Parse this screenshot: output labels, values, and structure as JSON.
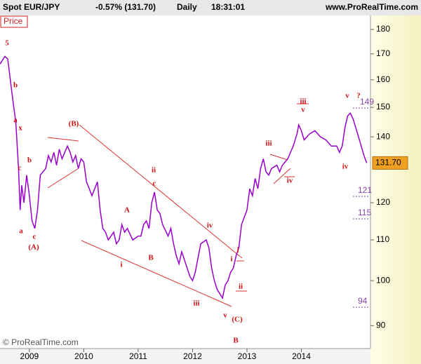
{
  "chart_data": {
    "type": "line",
    "title": "Spot EUR/JPY",
    "change": "-0.57% (131.70)",
    "period": "Daily",
    "time": "18:31:01",
    "source": "www.ProRealTime.com",
    "copyright": "© ProRealTime.com",
    "last_value": 131.7,
    "last_value_label": "131.70",
    "log_scale": true,
    "xlim": [
      2008.46,
      2015.27
    ],
    "xticks": [
      2009,
      2010,
      2011,
      2012,
      2013,
      2014
    ],
    "ylim": [
      87,
      186
    ],
    "yticks": [
      90,
      100,
      110,
      120,
      140,
      150,
      160,
      170,
      180
    ],
    "x": [
      2008.46,
      2008.55,
      2008.6,
      2008.62,
      2008.65,
      2008.7,
      2008.75,
      2008.8,
      2008.83,
      2008.86,
      2008.9,
      2008.95,
      2009.0,
      2009.05,
      2009.1,
      2009.15,
      2009.2,
      2009.3,
      2009.35,
      2009.4,
      2009.45,
      2009.5,
      2009.55,
      2009.6,
      2009.7,
      2009.75,
      2009.8,
      2009.85,
      2009.9,
      2009.95,
      2010.0,
      2010.05,
      2010.1,
      2010.15,
      2010.25,
      2010.3,
      2010.35,
      2010.4,
      2010.45,
      2010.55,
      2010.6,
      2010.65,
      2010.7,
      2010.75,
      2010.8,
      2010.9,
      2011.0,
      2011.05,
      2011.1,
      2011.15,
      2011.2,
      2011.25,
      2011.3,
      2011.35,
      2011.4,
      2011.45,
      2011.55,
      2011.6,
      2011.65,
      2011.7,
      2011.75,
      2011.8,
      2011.85,
      2011.95,
      2012.0,
      2012.05,
      2012.15,
      2012.25,
      2012.3,
      2012.35,
      2012.4,
      2012.45,
      2012.5,
      2012.55,
      2012.6,
      2012.65,
      2012.7,
      2012.75,
      2012.8,
      2012.85,
      2012.9,
      2013.0,
      2013.05,
      2013.1,
      2013.15,
      2013.2,
      2013.25,
      2013.3,
      2013.35,
      2013.4,
      2013.45,
      2013.55,
      2013.6,
      2013.65,
      2013.75,
      2013.85,
      2013.92,
      2013.95,
      2014.0,
      2014.05,
      2014.1,
      2014.15,
      2014.25,
      2014.35,
      2014.45,
      2014.55,
      2014.65,
      2014.7,
      2014.75,
      2014.8,
      2014.85,
      2014.9,
      2014.95,
      2015.0,
      2015.05,
      2015.1,
      2015.15,
      2015.2
    ],
    "series": [
      {
        "name": "Price",
        "color": "#9900cc",
        "values": [
          166,
          169,
          168,
          165,
          160,
          152,
          145,
          130,
          118,
          125,
          120,
          128,
          122,
          115,
          113,
          118,
          128,
          130,
          134,
          132,
          135,
          131,
          136,
          133,
          137,
          135,
          132,
          134,
          130,
          133,
          132,
          126,
          124,
          122,
          126,
          118,
          113,
          112,
          110,
          112,
          109,
          110,
          114,
          112,
          113,
          110,
          111,
          111,
          114,
          115,
          113,
          120,
          123,
          118,
          117,
          114,
          111,
          113,
          109,
          106,
          104,
          107,
          105,
          101,
          100,
          102,
          109,
          110,
          108,
          103,
          100,
          98,
          97,
          96,
          99,
          100,
          102,
          103,
          106,
          108,
          114,
          118,
          124,
          122,
          127,
          124,
          130,
          133,
          129,
          128,
          130,
          131,
          129,
          131,
          133,
          137,
          141,
          144,
          142,
          139,
          140,
          141,
          142,
          140,
          139,
          137,
          137,
          135,
          137,
          143,
          147,
          148,
          146,
          143,
          140,
          137,
          134,
          131.7
        ]
      }
    ],
    "annotations": [
      "5",
      "b",
      "a",
      "x",
      "c",
      "b",
      "a",
      "c",
      "(A)",
      "(B)",
      "ii",
      "c",
      "A",
      "iv",
      "B",
      "i",
      "iii",
      "i",
      "i",
      "ii",
      "v",
      "(C)",
      "B",
      "iii",
      "iv",
      "iii",
      "v",
      "v",
      "?",
      "iv"
    ],
    "levels": [
      "149",
      "121",
      "115",
      "94"
    ]
  }
}
